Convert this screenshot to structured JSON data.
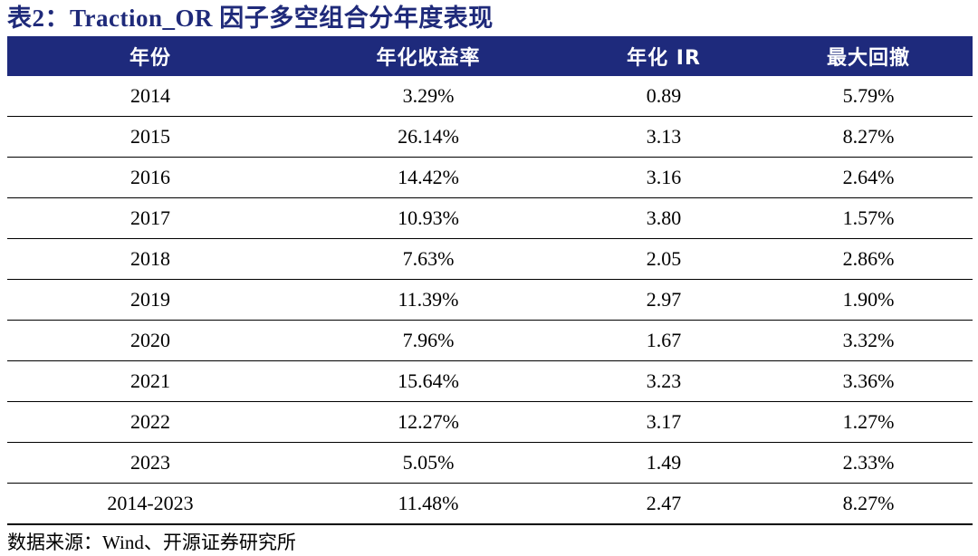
{
  "title": "表2：Traction_OR 因子多空组合分年度表现",
  "table": {
    "headers": [
      "年份",
      "年化收益率",
      "年化 IR",
      "最大回撤"
    ],
    "rows": [
      [
        "2014",
        "3.29%",
        "0.89",
        "5.79%"
      ],
      [
        "2015",
        "26.14%",
        "3.13",
        "8.27%"
      ],
      [
        "2016",
        "14.42%",
        "3.16",
        "2.64%"
      ],
      [
        "2017",
        "10.93%",
        "3.80",
        "1.57%"
      ],
      [
        "2018",
        "7.63%",
        "2.05",
        "2.86%"
      ],
      [
        "2019",
        "11.39%",
        "2.97",
        "1.90%"
      ],
      [
        "2020",
        "7.96%",
        "1.67",
        "3.32%"
      ],
      [
        "2021",
        "15.64%",
        "3.23",
        "3.36%"
      ],
      [
        "2022",
        "12.27%",
        "3.17",
        "1.27%"
      ],
      [
        "2023",
        "5.05%",
        "1.49",
        "2.33%"
      ],
      [
        "2014-2023",
        "11.48%",
        "2.47",
        "8.27%"
      ]
    ]
  },
  "source": "数据来源：Wind、开源证券研究所",
  "colors": {
    "header_bg": "#1e2a7c",
    "title_text": "#1f2a7a"
  }
}
